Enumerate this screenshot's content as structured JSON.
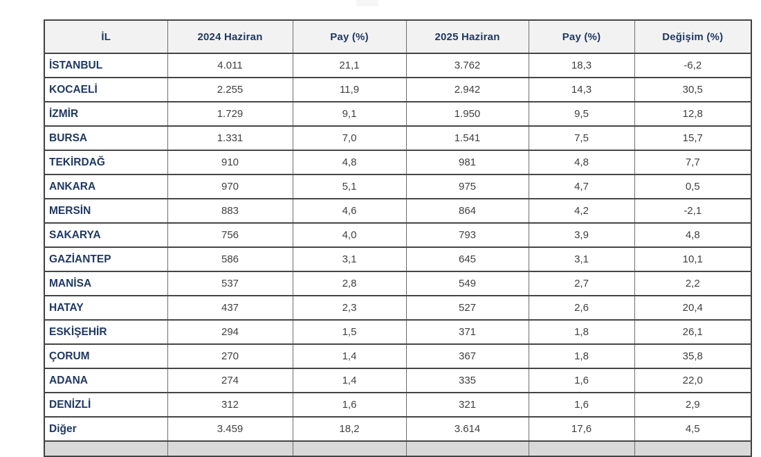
{
  "table": {
    "columns": [
      "İL",
      "2024 Haziran",
      "Pay  (%)",
      "2025 Haziran",
      "Pay  (%)",
      "Değişim (%)"
    ],
    "rows": [
      [
        "İSTANBUL",
        "4.011",
        "21,1",
        "3.762",
        "18,3",
        "-6,2"
      ],
      [
        "KOCAELİ",
        "2.255",
        "11,9",
        "2.942",
        "14,3",
        "30,5"
      ],
      [
        "İZMİR",
        "1.729",
        "9,1",
        "1.950",
        "9,5",
        "12,8"
      ],
      [
        "BURSA",
        "1.331",
        "7,0",
        "1.541",
        "7,5",
        "15,7"
      ],
      [
        "TEKİRDAĞ",
        "910",
        "4,8",
        "981",
        "4,8",
        "7,7"
      ],
      [
        "ANKARA",
        "970",
        "5,1",
        "975",
        "4,7",
        "0,5"
      ],
      [
        "MERSİN",
        "883",
        "4,6",
        "864",
        "4,2",
        "-2,1"
      ],
      [
        "SAKARYA",
        "756",
        "4,0",
        "793",
        "3,9",
        "4,8"
      ],
      [
        "GAZİANTEP",
        "586",
        "3,1",
        "645",
        "3,1",
        "10,1"
      ],
      [
        "MANİSA",
        "537",
        "2,8",
        "549",
        "2,7",
        "2,2"
      ],
      [
        "HATAY",
        "437",
        "2,3",
        "527",
        "2,6",
        "20,4"
      ],
      [
        "ESKİŞEHİR",
        "294",
        "1,5",
        "371",
        "1,8",
        "26,1"
      ],
      [
        "ÇORUM",
        "270",
        "1,4",
        "367",
        "1,8",
        "35,8"
      ],
      [
        "ADANA",
        "274",
        "1,4",
        "335",
        "1,6",
        "22,0"
      ],
      [
        "DENİZLİ",
        "312",
        "1,6",
        "321",
        "1,6",
        "2,9"
      ],
      [
        "Diğer",
        "3.459",
        "18,2",
        "3.614",
        "17,6",
        "4,5"
      ]
    ]
  },
  "colors": {
    "header_text": "#1f3864",
    "header_background": "#f2f2f2",
    "row_label_text": "#1f3864",
    "value_text": "#3f3f3f",
    "border": "#454545",
    "footer_row_background": "#d9d9d9"
  }
}
